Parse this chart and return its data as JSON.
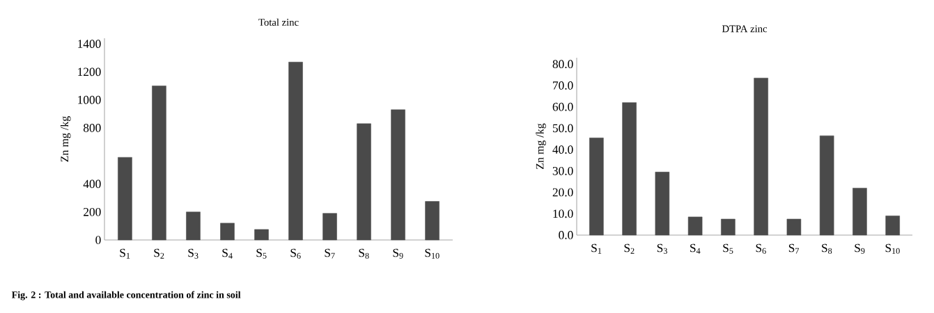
{
  "chart_data": [
    {
      "type": "bar",
      "title": "Total zinc",
      "ylabel": "Zn mg /kg",
      "categories": [
        "S$_{1}$",
        "S$_{2}$",
        "S$_{3}$",
        "S$_{4}$",
        "S$_{5}$",
        "S$_{6}$",
        "S$_{7}$",
        "S$_{8}$",
        "S$_{9}$",
        "S$_{10}$"
      ],
      "values": [
        590,
        1100,
        200,
        120,
        75,
        1270,
        190,
        830,
        930,
        275
      ],
      "color": "#4a4a4a",
      "ylim": [
        0,
        1440
      ],
      "yticks": [
        0,
        200,
        400,
        800,
        1000,
        1200,
        1400
      ],
      "annotations": [
        "Fig. 2 : Total and available concentration of zinc in soil"
      ]
    },
    {
      "type": "bar",
      "title": "DTPA zinc",
      "ylabel": "Zn mg /kg",
      "categories": [
        "S$_{1}$",
        "S$_{2}$",
        "S$_{3}$",
        "S$_{4}$",
        "S$_{5}$",
        "S$_{6}$",
        "S$_{7}$",
        "S$_{8}$",
        "S$_{9}$",
        "S$_{10}$"
      ],
      "values": [
        45.5,
        62,
        29.5,
        8.5,
        7.5,
        73.5,
        7.5,
        46.5,
        22,
        9
      ],
      "color": "#4a4a4a",
      "ylim": [
        0,
        83
      ],
      "yticks": [
        {
          "value": 0,
          "label": "0.0"
        },
        {
          "value": 10,
          "label": "10.0"
        },
        {
          "value": 20,
          "label": "20.0"
        },
        {
          "value": 30,
          "label": "30.0"
        },
        {
          "value": 40,
          "label": "40.0"
        },
        {
          "value": 50,
          "label": "50.0"
        },
        {
          "value": 60,
          "label": "60.0"
        },
        {
          "value": 70,
          "label": "70.0"
        },
        {
          "value": 80,
          "label": "80.0"
        }
      ]
    }
  ]
}
